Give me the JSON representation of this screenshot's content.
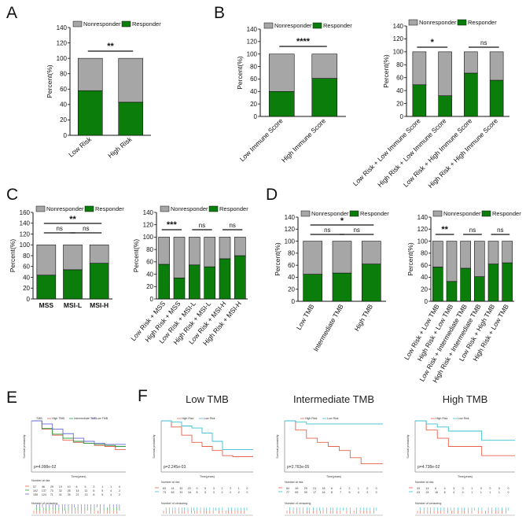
{
  "colors": {
    "responder": "#0a7d0a",
    "nonresponder": "#a6a6a6",
    "high_risk": "#e8604c",
    "low_risk": "#3bbfd0",
    "intermediate": "#2a9a3a",
    "km_blue": "#6a6ad8"
  },
  "panels": {
    "A": "A",
    "B": "B",
    "C": "C",
    "D": "D",
    "E": "E",
    "F": "F"
  },
  "legend": {
    "nonresponder": "Nonresponder",
    "responder": "Responder"
  },
  "ylabel": "Percent(%)",
  "chart_data": [
    {
      "id": "A",
      "type": "bar",
      "stacked": true,
      "categories": [
        "Low Risk",
        "High Risk"
      ],
      "series": [
        {
          "name": "Responder",
          "values": [
            58,
            43
          ]
        },
        {
          "name": "Nonresponder",
          "values": [
            42,
            57
          ]
        }
      ],
      "ylabel": "Percent(%)",
      "ylim": [
        0,
        140
      ],
      "yticks": [
        "0",
        "20",
        "40",
        "60",
        "80",
        "100",
        "120",
        "140"
      ],
      "significance": [
        {
          "label": "**",
          "from": 0,
          "to": 1
        }
      ]
    },
    {
      "id": "B1",
      "type": "bar",
      "stacked": true,
      "categories": [
        "Low Immune Score",
        "High Immune Score"
      ],
      "series": [
        {
          "name": "Responder",
          "values": [
            40,
            61
          ]
        },
        {
          "name": "Nonresponder",
          "values": [
            60,
            39
          ]
        }
      ],
      "ylabel": "Percent(%)",
      "ylim": [
        0,
        140
      ],
      "yticks": [
        "0",
        "20",
        "40",
        "60",
        "80",
        "100",
        "120",
        "140"
      ],
      "significance": [
        {
          "label": "****",
          "from": 0,
          "to": 1
        }
      ]
    },
    {
      "id": "B2",
      "type": "bar",
      "stacked": true,
      "categories": [
        "Low Risk + Low Immune Score",
        "High Risk + Low Immune Score",
        "Low Risk + High Immune Score",
        "High Risk + High Immune Score"
      ],
      "series": [
        {
          "name": "Responder",
          "values": [
            49,
            32,
            67,
            56
          ]
        },
        {
          "name": "Nonresponder",
          "values": [
            51,
            68,
            33,
            44
          ]
        }
      ],
      "ylabel": "Percent(%)",
      "ylim": [
        0,
        140
      ],
      "yticks": [
        "0",
        "20",
        "40",
        "60",
        "80",
        "100",
        "120",
        "140"
      ],
      "significance": [
        {
          "label": "*",
          "from": 0,
          "to": 1
        },
        {
          "label": "ns",
          "from": 2,
          "to": 3
        }
      ]
    },
    {
      "id": "C1",
      "type": "bar",
      "stacked": true,
      "categories": [
        "MSS",
        "MSI-L",
        "MSI-H"
      ],
      "series": [
        {
          "name": "Responder",
          "values": [
            44,
            54,
            66
          ]
        },
        {
          "name": "Nonresponder",
          "values": [
            56,
            46,
            34
          ]
        }
      ],
      "ylabel": "Percent(%)",
      "ylim": [
        0,
        160
      ],
      "yticks": [
        "0",
        "20",
        "40",
        "60",
        "80",
        "100",
        "120",
        "140",
        "160"
      ],
      "significance": [
        {
          "label": "ns",
          "from": 0,
          "to": 1
        },
        {
          "label": "ns",
          "from": 1,
          "to": 2
        },
        {
          "label": "**",
          "from": 0,
          "to": 2
        }
      ]
    },
    {
      "id": "C2",
      "type": "bar",
      "stacked": true,
      "categories": [
        "Low Risk + MSS",
        "High Risk + MSS",
        "Low Risk + MSI-L",
        "High Risk + MSI-L",
        "Low Risk + MSI-H",
        "High Risk + MSI-H"
      ],
      "series": [
        {
          "name": "Responder",
          "values": [
            56,
            34,
            55,
            52,
            65,
            70
          ]
        },
        {
          "name": "Nonresponder",
          "values": [
            44,
            66,
            45,
            48,
            35,
            30
          ]
        }
      ],
      "ylabel": "Percent(%)",
      "ylim": [
        0,
        140
      ],
      "yticks": [
        "0",
        "20",
        "40",
        "60",
        "80",
        "100",
        "120",
        "140"
      ],
      "significance": [
        {
          "label": "***",
          "from": 0,
          "to": 1
        },
        {
          "label": "ns",
          "from": 2,
          "to": 3
        },
        {
          "label": "ns",
          "from": 4,
          "to": 5
        }
      ]
    },
    {
      "id": "D1",
      "type": "bar",
      "stacked": true,
      "categories": [
        "Low TMB",
        "Intermediate TMB",
        "High TMB"
      ],
      "series": [
        {
          "name": "Responder",
          "values": [
            45,
            47,
            62
          ]
        },
        {
          "name": "Nonresponder",
          "values": [
            55,
            53,
            38
          ]
        }
      ],
      "ylabel": "Percent(%)",
      "ylim": [
        0,
        140
      ],
      "yticks": [
        "0",
        "20",
        "40",
        "60",
        "80",
        "100",
        "120",
        "140"
      ],
      "significance": [
        {
          "label": "ns",
          "from": 0,
          "to": 1
        },
        {
          "label": "ns",
          "from": 1,
          "to": 2
        },
        {
          "label": "*",
          "from": 0,
          "to": 2
        }
      ]
    },
    {
      "id": "D2",
      "type": "bar",
      "stacked": true,
      "categories": [
        "Low Risk + Low TMB",
        "High Risk + Low TMB",
        "Low Risk + Intermediate TMB",
        "High Risk + Intermediate TMB",
        "Low Risk + High TMB",
        "High Risk + Low TMB"
      ],
      "series": [
        {
          "name": "Responder",
          "values": [
            57,
            33,
            55,
            41,
            62,
            64
          ]
        },
        {
          "name": "Nonresponder",
          "values": [
            43,
            67,
            45,
            59,
            38,
            36
          ]
        }
      ],
      "ylabel": "Percent(%)",
      "ylim": [
        0,
        140
      ],
      "yticks": [
        "0",
        "20",
        "40",
        "60",
        "80",
        "100",
        "120",
        "140"
      ],
      "significance": [
        {
          "label": "**",
          "from": 0,
          "to": 1
        },
        {
          "label": "ns",
          "from": 2,
          "to": 3
        },
        {
          "label": "ns",
          "from": 4,
          "to": 5
        }
      ]
    },
    {
      "id": "E",
      "type": "line",
      "subtype": "kaplan-meier",
      "title": "",
      "legend_title": "TMB",
      "series": [
        {
          "name": "High TMB",
          "x": [
            0,
            5,
            10,
            15,
            20,
            25,
            30,
            35,
            40,
            45
          ],
          "y": [
            1.0,
            0.84,
            0.72,
            0.62,
            0.58,
            0.56,
            0.52,
            0.5,
            0.44,
            0.44
          ]
        },
        {
          "name": "Intermediate TMB",
          "x": [
            0,
            5,
            10,
            15,
            20,
            25,
            30,
            35,
            40,
            45
          ],
          "y": [
            1.0,
            0.85,
            0.74,
            0.66,
            0.6,
            0.56,
            0.54,
            0.52,
            0.5,
            0.5
          ]
        },
        {
          "name": "Low TMB",
          "x": [
            0,
            5,
            10,
            15,
            20,
            25,
            30,
            35,
            40,
            45
          ],
          "y": [
            1.0,
            0.94,
            0.84,
            0.75,
            0.66,
            0.6,
            0.56,
            0.54,
            0.54,
            0.54
          ]
        }
      ],
      "pvalue": "p=4.998e-02",
      "xlabel": "Time(years)",
      "ylabel": "Survival probability",
      "risk_table_title": "Number at risk",
      "censor_table_title": "Number of censoring",
      "risk_table": [
        [
          "57",
          "46",
          "29",
          "19",
          "10",
          "8",
          "5",
          "3",
          "1",
          "1",
          "0"
        ],
        [
          "102",
          "137",
          "73",
          "32",
          "26",
          "14",
          "11",
          "6",
          "5",
          "4",
          "2"
        ],
        [
          "155",
          "124",
          "71",
          "41",
          "35",
          "21",
          "13",
          "8",
          "5",
          "4",
          "2"
        ]
      ]
    },
    {
      "id": "F1",
      "type": "line",
      "subtype": "kaplan-meier",
      "title": "Low TMB",
      "series": [
        {
          "name": "High Risk",
          "x": [
            0,
            5,
            10,
            15,
            20,
            25,
            30,
            35,
            40,
            45
          ],
          "y": [
            1.0,
            0.88,
            0.72,
            0.58,
            0.5,
            0.42,
            0.32,
            0.3,
            0.3,
            0.3
          ]
        },
        {
          "name": "Low Risk",
          "x": [
            0,
            5,
            10,
            15,
            20,
            25,
            30,
            35,
            40,
            45
          ],
          "y": [
            1.0,
            0.98,
            0.9,
            0.86,
            0.76,
            0.6,
            0.44,
            0.44,
            0.44,
            0.44
          ]
        }
      ],
      "pvalue": "p=2.245e-03",
      "xlabel": "Time(years)",
      "ylabel": "Survival probability",
      "risk_table_title": "Number at risk",
      "censor_table_title": "Number of censoring",
      "risk_table": [
        [
          "83",
          "41",
          "33",
          "22",
          "9",
          "5",
          "3",
          "2",
          "2",
          "1",
          "0"
        ],
        [
          "73",
          "63",
          "33",
          "18",
          "8",
          "5",
          "3",
          "2",
          "2",
          "2",
          "0"
        ]
      ]
    },
    {
      "id": "F2",
      "type": "line",
      "subtype": "kaplan-meier",
      "title": "Intermediate TMB",
      "series": [
        {
          "name": "High Risk",
          "x": [
            0,
            5,
            10,
            15,
            20,
            25,
            30,
            35,
            40,
            45
          ],
          "y": [
            1.0,
            0.82,
            0.66,
            0.58,
            0.5,
            0.42,
            0.28,
            0.16,
            0.16,
            0.16
          ]
        },
        {
          "name": "Low Risk",
          "x": [
            0,
            5,
            10,
            15,
            20,
            25,
            30,
            35,
            40,
            45
          ],
          "y": [
            1.0,
            0.98,
            0.94,
            0.94,
            0.94,
            0.94,
            0.94,
            0.94,
            0.94,
            0.94
          ]
        }
      ],
      "pvalue": "p=2.763e-05",
      "xlabel": "Time(years)",
      "ylabel": "Survival probability",
      "risk_table_title": "Number at risk",
      "censor_table_title": "Number of censoring",
      "risk_table": [
        [
          "84",
          "49",
          "29",
          "21",
          "18",
          "6",
          "4",
          "2",
          "1",
          "0",
          "0"
        ],
        [
          "77",
          "69",
          "39",
          "17",
          "16",
          "8",
          "7",
          "6",
          "4",
          "3",
          "0"
        ]
      ]
    },
    {
      "id": "F3",
      "type": "line",
      "subtype": "kaplan-meier",
      "title": "High TMB",
      "series": [
        {
          "name": "High Risk",
          "x": [
            0,
            5,
            10,
            15,
            20,
            25,
            30,
            35,
            40,
            45
          ],
          "y": [
            1.0,
            0.82,
            0.66,
            0.5,
            0.5,
            0.5,
            0.32,
            0.32,
            0.32,
            0.32
          ]
        },
        {
          "name": "Low Risk",
          "x": [
            0,
            5,
            10,
            15,
            20,
            25,
            30,
            35,
            40,
            45
          ],
          "y": [
            1.0,
            0.94,
            0.88,
            0.8,
            0.8,
            0.8,
            0.62,
            0.62,
            0.62,
            0.62
          ]
        }
      ],
      "pvalue": "p=4.738e-02",
      "xlabel": "Time(years)",
      "ylabel": "Survival probability",
      "risk_table_title": "Number at risk",
      "censor_table_title": "Number of censoring",
      "risk_table": [
        [
          "33",
          "14",
          "6",
          "4",
          "3",
          "3",
          "1",
          "0",
          "0",
          "0",
          "0"
        ],
        [
          "23",
          "24",
          "16",
          "8",
          "4",
          "2",
          "1",
          "1",
          "1",
          "1",
          "0"
        ]
      ]
    }
  ]
}
